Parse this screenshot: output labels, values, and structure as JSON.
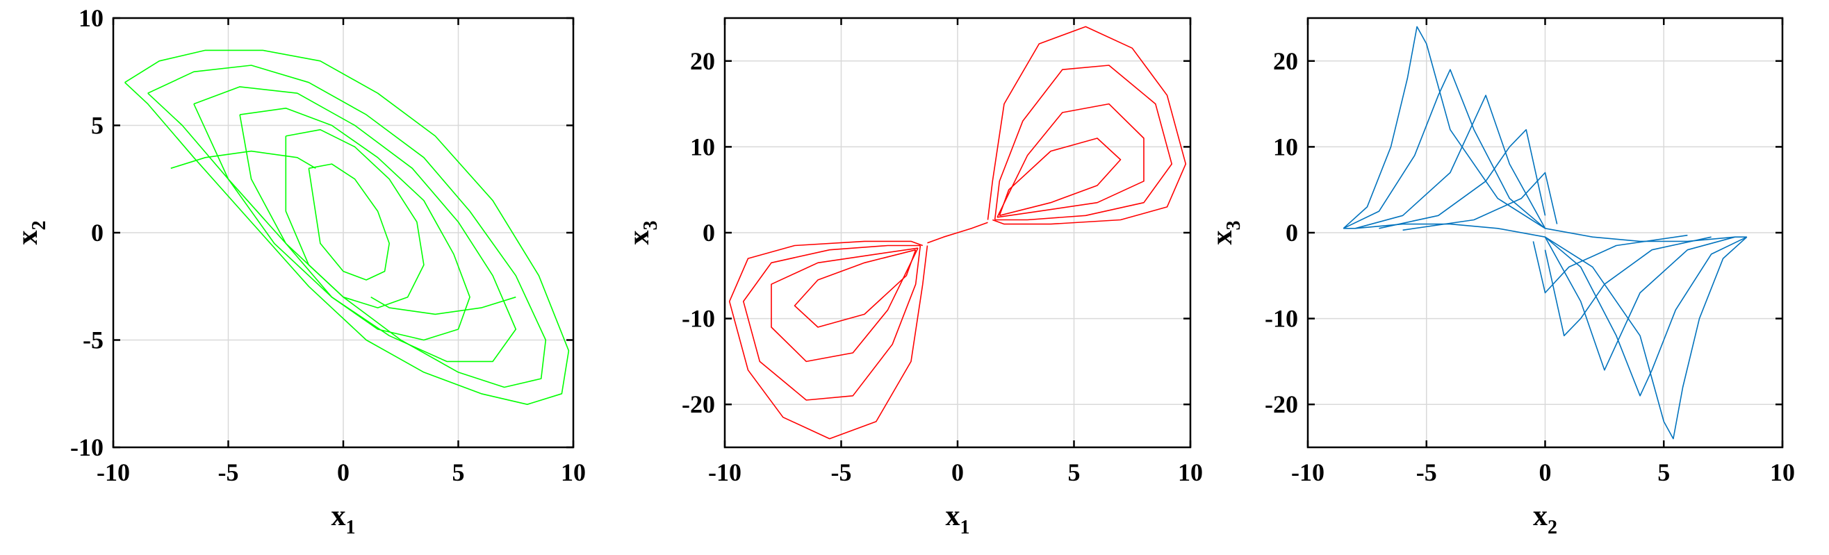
{
  "chart_data": [
    {
      "type": "line",
      "xlabel": {
        "base": "x",
        "sub": "1"
      },
      "ylabel": {
        "base": "x",
        "sub": "2"
      },
      "xlim": [
        -10,
        10
      ],
      "ylim": [
        -10,
        10
      ],
      "xticks": [
        -10,
        -5,
        0,
        5,
        10
      ],
      "yticks": [
        -10,
        -5,
        0,
        5,
        10
      ],
      "xtick_labels": [
        "-10",
        "-5",
        "0",
        "5",
        "10"
      ],
      "ytick_labels": [
        "-10",
        "-5",
        "0",
        "5",
        "10"
      ],
      "grid": true,
      "color": "#00ff00",
      "series": [
        {
          "x": [
            -9.5,
            -8.0,
            -6.0,
            -3.5,
            -1.0,
            1.5,
            4.0,
            6.5,
            8.5,
            9.8,
            9.5,
            8.0,
            6.0,
            3.5,
            1.0,
            -1.5,
            -4.0,
            -6.5,
            -8.5,
            -9.5
          ],
          "y": [
            7.0,
            8.0,
            8.5,
            8.5,
            8.0,
            6.5,
            4.5,
            1.5,
            -2.0,
            -5.5,
            -7.5,
            -8.0,
            -7.5,
            -6.5,
            -5.0,
            -2.5,
            0.5,
            3.5,
            6.0,
            7.0
          ]
        },
        {
          "x": [
            -8.5,
            -6.5,
            -4.0,
            -1.5,
            1.0,
            3.5,
            5.5,
            7.5,
            8.8,
            8.6,
            7.0,
            5.0,
            2.5,
            0.0,
            -2.5,
            -5.0,
            -7.0,
            -8.5
          ],
          "y": [
            6.5,
            7.5,
            7.8,
            7.0,
            5.5,
            3.5,
            1.0,
            -2.0,
            -5.0,
            -6.8,
            -7.2,
            -6.5,
            -5.0,
            -3.0,
            -0.5,
            2.5,
            5.0,
            6.5
          ]
        },
        {
          "x": [
            -6.5,
            -4.5,
            -2.0,
            0.5,
            3.0,
            5.0,
            6.5,
            7.5,
            6.5,
            4.5,
            2.0,
            -0.5,
            -3.0,
            -5.0,
            -6.5
          ],
          "y": [
            6.0,
            6.8,
            6.5,
            5.0,
            3.0,
            0.5,
            -2.0,
            -4.5,
            -6.0,
            -6.0,
            -4.8,
            -3.0,
            -0.5,
            2.5,
            6.0
          ]
        },
        {
          "x": [
            -4.5,
            -2.5,
            -0.5,
            1.5,
            3.5,
            4.8,
            5.5,
            5.0,
            3.5,
            1.5,
            -0.5,
            -2.5,
            -4.0,
            -4.5
          ],
          "y": [
            5.5,
            5.8,
            5.0,
            3.5,
            1.5,
            -1.0,
            -3.0,
            -4.5,
            -5.0,
            -4.5,
            -3.0,
            -0.5,
            2.5,
            5.5
          ]
        },
        {
          "x": [
            -2.5,
            -1.0,
            0.5,
            2.0,
            3.2,
            3.5,
            2.8,
            1.5,
            0.0,
            -1.5,
            -2.5,
            -2.5
          ],
          "y": [
            4.5,
            4.8,
            4.0,
            2.5,
            0.5,
            -1.5,
            -3.0,
            -3.5,
            -3.0,
            -1.5,
            1.0,
            4.5
          ]
        },
        {
          "x": [
            -1.5,
            -0.5,
            0.5,
            1.5,
            2.0,
            1.8,
            1.0,
            0.0,
            -1.0,
            -1.5
          ],
          "y": [
            3.0,
            3.2,
            2.5,
            1.0,
            -0.5,
            -1.8,
            -2.2,
            -1.8,
            -0.5,
            3.0
          ]
        },
        {
          "x": [
            -7.5,
            -6.0,
            -4.0,
            -2.0,
            -1.2
          ],
          "y": [
            3.0,
            3.5,
            3.8,
            3.5,
            3.0
          ]
        },
        {
          "x": [
            1.2,
            2.0,
            4.0,
            6.0,
            7.5
          ],
          "y": [
            -3.0,
            -3.5,
            -3.8,
            -3.5,
            -3.0
          ]
        }
      ]
    },
    {
      "type": "line",
      "xlabel": {
        "base": "x",
        "sub": "1"
      },
      "ylabel": {
        "base": "x",
        "sub": "3"
      },
      "xlim": [
        -10,
        10
      ],
      "ylim": [
        -25,
        25
      ],
      "xticks": [
        -10,
        -5,
        0,
        5,
        10
      ],
      "yticks": [
        -20,
        -10,
        0,
        10,
        20
      ],
      "xtick_labels": [
        "-10",
        "-5",
        "0",
        "5",
        "10"
      ],
      "ytick_labels": [
        "-20",
        "-10",
        "0",
        "10",
        "20"
      ],
      "grid": true,
      "color": "#ff0000",
      "series": [
        {
          "x": [
            -1.5,
            -2.0,
            -4.0,
            -7.0,
            -9.0,
            -9.8,
            -9.0,
            -7.5,
            -5.5,
            -3.5,
            -2.0,
            -1.5,
            -1.3
          ],
          "y": [
            -1.5,
            -1.0,
            -1.0,
            -1.5,
            -3.0,
            -8.0,
            -16.0,
            -21.5,
            -24.0,
            -22.0,
            -15.0,
            -6.0,
            -1.5
          ]
        },
        {
          "x": [
            -1.6,
            -3.0,
            -5.5,
            -8.0,
            -9.2,
            -8.5,
            -6.5,
            -4.5,
            -2.8,
            -1.8,
            -1.6
          ],
          "y": [
            -1.5,
            -1.5,
            -2.0,
            -3.5,
            -8.0,
            -15.0,
            -19.5,
            -19.0,
            -13.0,
            -6.0,
            -1.5
          ]
        },
        {
          "x": [
            -1.7,
            -3.5,
            -6.0,
            -8.0,
            -8.0,
            -6.5,
            -4.5,
            -3.0,
            -1.7
          ],
          "y": [
            -1.8,
            -2.5,
            -3.5,
            -6.0,
            -11.0,
            -15.0,
            -14.0,
            -9.0,
            -1.8
          ]
        },
        {
          "x": [
            -1.8,
            -4.0,
            -6.0,
            -7.0,
            -6.0,
            -4.0,
            -2.2,
            -1.8
          ],
          "y": [
            -2.0,
            -3.5,
            -5.5,
            -8.5,
            -11.0,
            -9.5,
            -5.0,
            -2.0
          ]
        },
        {
          "x": [
            -1.3,
            -0.6,
            0.0,
            0.6,
            1.3
          ],
          "y": [
            -1.2,
            -0.5,
            0.0,
            0.5,
            1.2
          ]
        },
        {
          "x": [
            1.5,
            2.0,
            4.0,
            7.0,
            9.0,
            9.8,
            9.0,
            7.5,
            5.5,
            3.5,
            2.0,
            1.5,
            1.3
          ],
          "y": [
            1.5,
            1.0,
            1.0,
            1.5,
            3.0,
            8.0,
            16.0,
            21.5,
            24.0,
            22.0,
            15.0,
            6.0,
            1.5
          ]
        },
        {
          "x": [
            1.6,
            3.0,
            5.5,
            8.0,
            9.2,
            8.5,
            6.5,
            4.5,
            2.8,
            1.8,
            1.6
          ],
          "y": [
            1.5,
            1.5,
            2.0,
            3.5,
            8.0,
            15.0,
            19.5,
            19.0,
            13.0,
            6.0,
            1.5
          ]
        },
        {
          "x": [
            1.7,
            3.5,
            6.0,
            8.0,
            8.0,
            6.5,
            4.5,
            3.0,
            1.7
          ],
          "y": [
            1.8,
            2.5,
            3.5,
            6.0,
            11.0,
            15.0,
            14.0,
            9.0,
            1.8
          ]
        },
        {
          "x": [
            1.8,
            4.0,
            6.0,
            7.0,
            6.0,
            4.0,
            2.2,
            1.8
          ],
          "y": [
            2.0,
            3.5,
            5.5,
            8.5,
            11.0,
            9.5,
            5.0,
            2.0
          ]
        }
      ]
    },
    {
      "type": "line",
      "xlabel": {
        "base": "x",
        "sub": "2"
      },
      "ylabel": {
        "base": "x",
        "sub": "3"
      },
      "xlim": [
        -10,
        10
      ],
      "ylim": [
        -25,
        25
      ],
      "xticks": [
        -10,
        -5,
        0,
        5,
        10
      ],
      "yticks": [
        -20,
        -10,
        0,
        10,
        20
      ],
      "xtick_labels": [
        "-10",
        "-5",
        "0",
        "5",
        "10"
      ],
      "ytick_labels": [
        "-20",
        "-10",
        "0",
        "10",
        "20"
      ],
      "grid": true,
      "color": "#0072bd",
      "series": [
        {
          "x": [
            -8.5,
            -7.5,
            -6.5,
            -5.8,
            -5.4,
            -5.0,
            -4.0,
            -2.0,
            0.0,
            2.0,
            4.0,
            6.0,
            8.0,
            8.5
          ],
          "y": [
            0.5,
            3.0,
            10.0,
            18.0,
            24.0,
            22.0,
            12.0,
            4.0,
            0.5,
            -0.5,
            -1.0,
            -1.0,
            -0.5,
            -0.5
          ]
        },
        {
          "x": [
            -8.5,
            -7.0,
            -5.5,
            -4.5,
            -4.0,
            -3.0,
            -1.5,
            0.0
          ],
          "y": [
            0.5,
            2.5,
            9.0,
            16.0,
            19.0,
            12.0,
            4.0,
            0.5
          ]
        },
        {
          "x": [
            -8.0,
            -6.0,
            -4.0,
            -3.0,
            -2.5,
            -1.5,
            0.0
          ],
          "y": [
            0.5,
            2.0,
            7.0,
            13.0,
            16.0,
            8.0,
            0.5
          ]
        },
        {
          "x": [
            -7.0,
            -4.5,
            -2.5,
            -1.5,
            -0.8,
            0.0
          ],
          "y": [
            0.5,
            2.0,
            6.0,
            10.0,
            12.0,
            2.0
          ]
        },
        {
          "x": [
            -6.0,
            -3.0,
            -1.0,
            0.0,
            0.5
          ],
          "y": [
            0.3,
            1.5,
            4.0,
            7.0,
            1.0
          ]
        },
        {
          "x": [
            8.5,
            7.5,
            6.5,
            5.8,
            5.4,
            5.0,
            4.0,
            2.0,
            0.0,
            -2.0,
            -4.0,
            -6.0,
            -8.0,
            -8.5
          ],
          "y": [
            -0.5,
            -3.0,
            -10.0,
            -18.0,
            -24.0,
            -22.0,
            -12.0,
            -4.0,
            -0.5,
            0.5,
            1.0,
            1.0,
            0.5,
            0.5
          ]
        },
        {
          "x": [
            8.5,
            7.0,
            5.5,
            4.5,
            4.0,
            3.0,
            1.5,
            0.0
          ],
          "y": [
            -0.5,
            -2.5,
            -9.0,
            -16.0,
            -19.0,
            -12.0,
            -4.0,
            -0.5
          ]
        },
        {
          "x": [
            8.0,
            6.0,
            4.0,
            3.0,
            2.5,
            1.5,
            0.0
          ],
          "y": [
            -0.5,
            -2.0,
            -7.0,
            -13.0,
            -16.0,
            -8.0,
            -0.5
          ]
        },
        {
          "x": [
            7.0,
            4.5,
            2.5,
            1.5,
            0.8,
            0.0
          ],
          "y": [
            -0.5,
            -2.0,
            -6.0,
            -10.0,
            -12.0,
            -2.0
          ]
        },
        {
          "x": [
            6.0,
            3.0,
            1.0,
            0.0,
            -0.5
          ],
          "y": [
            -0.3,
            -1.5,
            -4.0,
            -7.0,
            -1.0
          ]
        }
      ]
    }
  ]
}
